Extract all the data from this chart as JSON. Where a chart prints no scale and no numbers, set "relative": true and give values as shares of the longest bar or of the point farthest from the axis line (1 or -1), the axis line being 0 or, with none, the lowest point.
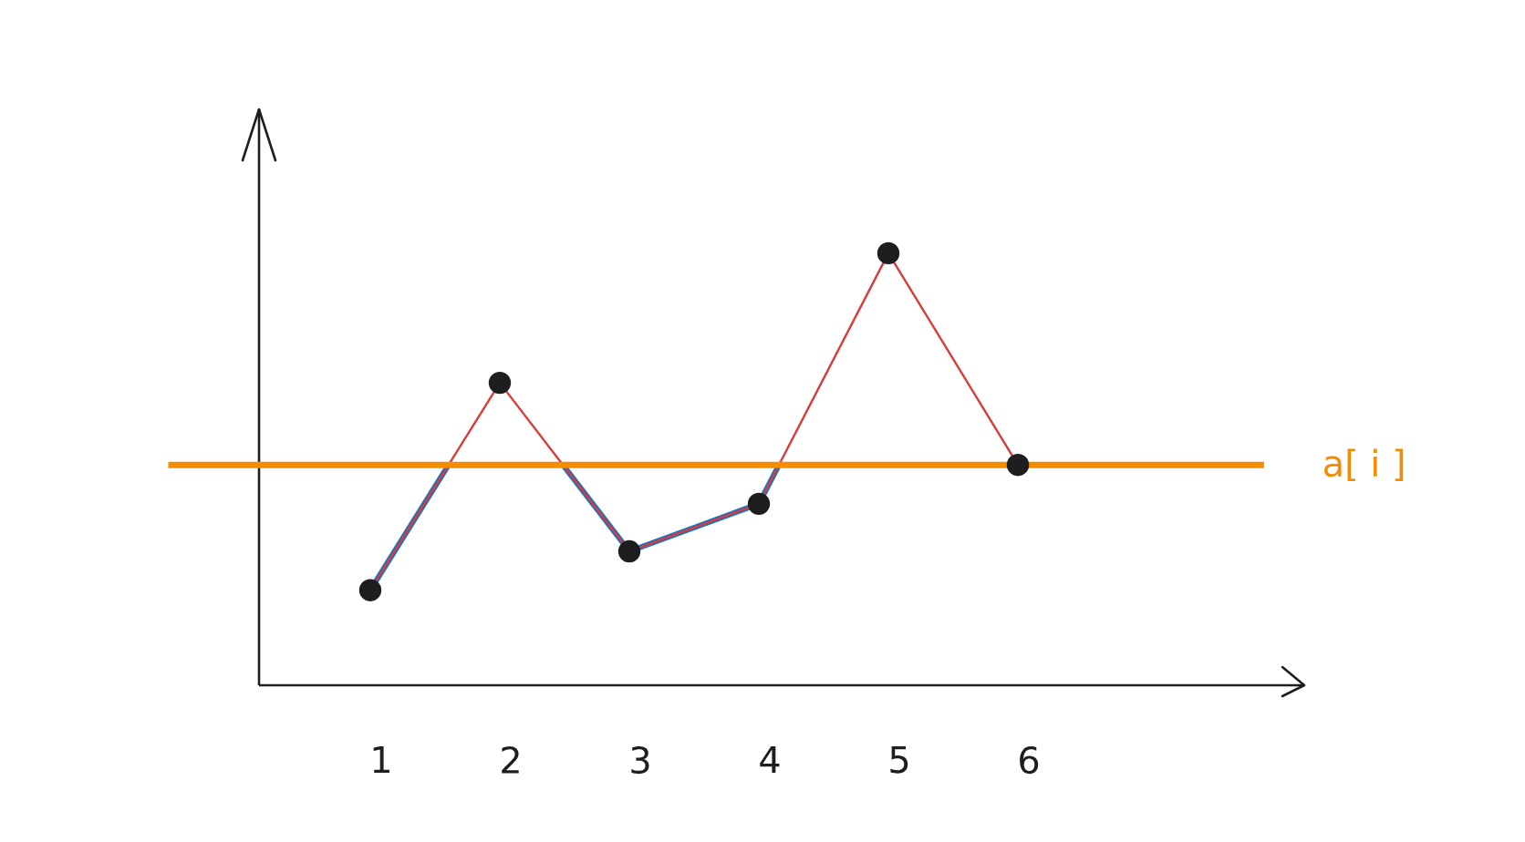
{
  "chart_data": {
    "type": "line",
    "relative": true,
    "categories": [
      "1",
      "2",
      "3",
      "4",
      "5",
      "6"
    ],
    "series": [
      {
        "color": "#d93a3a",
        "values": [
          0.22,
          0.7,
          0.31,
          0.42,
          1,
          0.51
        ]
      }
    ],
    "ref_lines": [
      {
        "axis": "y",
        "value": 0.51,
        "label": "a[ i ]",
        "color": "#f28c00"
      }
    ],
    "marker": "circle",
    "tick_labels": "x"
  }
}
